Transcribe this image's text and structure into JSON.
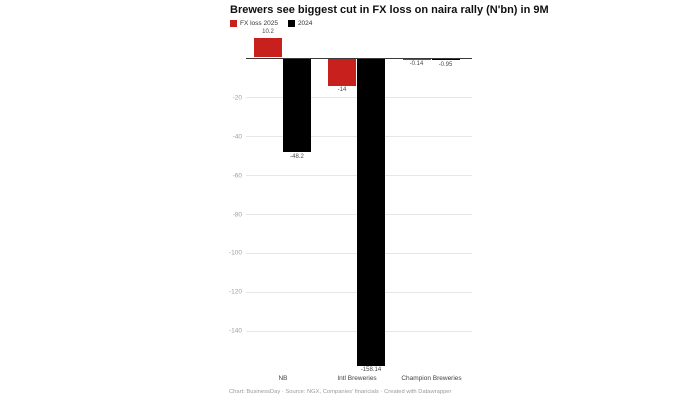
{
  "title": "Brewers see biggest cut in FX loss on naira rally (N'bn) in 9M",
  "legend": [
    {
      "label": "FX loss 2025",
      "color": "#c8201d"
    },
    {
      "label": "2024",
      "color": "#000000"
    }
  ],
  "footer": "Chart: BusinessDay · Source: NGX, Companies' financials · Created with Datawrapper",
  "colors": {
    "accent_red": "#c8201d",
    "accent_black": "#000000",
    "gridline": "#e7e7e7",
    "zero_line": "#3a3a3a",
    "tick_text": "#9d9d9d"
  },
  "chart_data": {
    "type": "bar",
    "categories": [
      "NB",
      "Intl Breweries",
      "Champion Breweries"
    ],
    "series": [
      {
        "name": "FX loss 2025",
        "color": "#c8201d",
        "values": [
          10.2,
          -14,
          -0.14
        ],
        "labels": [
          "10.2",
          "-14",
          "-0.14"
        ]
      },
      {
        "name": "2024",
        "color": "#000000",
        "values": [
          -48.2,
          -158.14,
          -0.95
        ],
        "labels": [
          "-48.2",
          "-158.14",
          "-0.95"
        ]
      }
    ],
    "title": "Brewers see biggest cut in FX loss on naira rally (N'bn) in 9M",
    "xlabel": "",
    "ylabel": "",
    "ylim": [
      -165,
      15
    ],
    "yticks": [
      -20,
      -40,
      -60,
      -80,
      -100,
      -120,
      -140
    ],
    "grid": true,
    "legend_position": "top-left"
  }
}
